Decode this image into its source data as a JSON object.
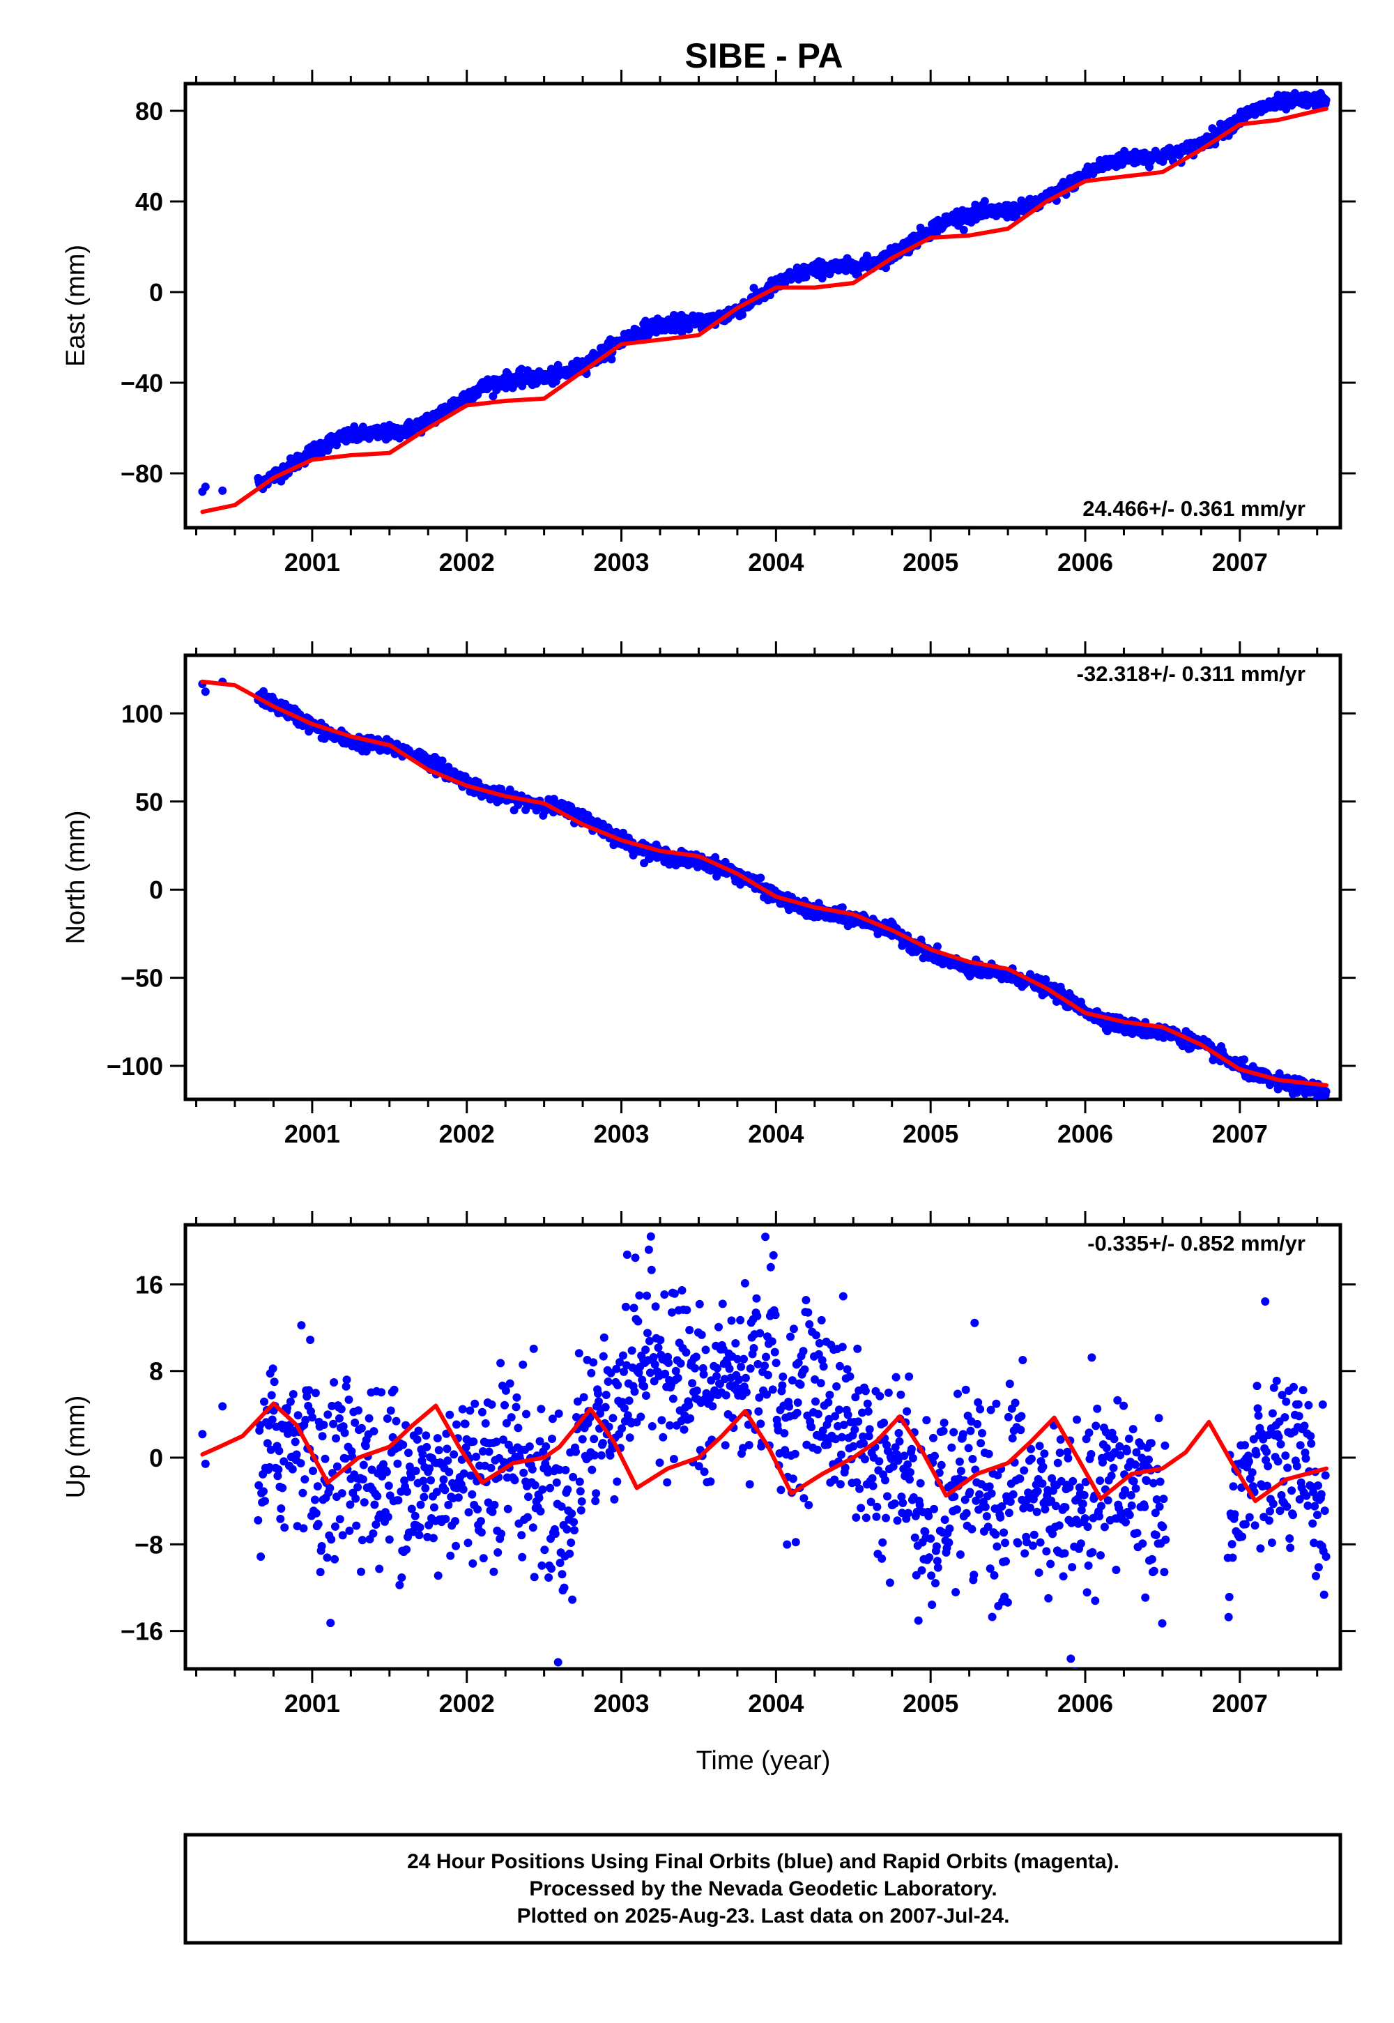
{
  "title": "SIBE - PA",
  "xlabel": "Time (year)",
  "footer": [
    "24 Hour Positions Using Final Orbits (blue) and Rapid Orbits (magenta).",
    "Processed by the Nevada Geodetic Laboratory.",
    "Plotted on 2025-Aug-23. Last data on 2007-Jul-24."
  ],
  "colors": {
    "data": "#0000ff",
    "model": "#ff0000",
    "frame": "#000000"
  },
  "chart_data": [
    {
      "type": "scatter",
      "ylabel": "East (mm)",
      "rate_label": "24.466+/- 0.361 mm/yr",
      "xlim": [
        2000.18,
        2007.65
      ],
      "ylim": [
        -104,
        92
      ],
      "xticks": [
        2001,
        2002,
        2003,
        2004,
        2005,
        2006,
        2007
      ],
      "xtick_labels": [
        "2001",
        "2002",
        "2003",
        "2004",
        "2005",
        "2006",
        "2007"
      ],
      "yticks": [
        -80,
        -40,
        0,
        40,
        80
      ],
      "ytick_labels": [
        "−80",
        "−40",
        "0",
        "40",
        "80"
      ],
      "series": [
        {
          "role": "daily positions (final orbits)",
          "x_range": [
            2000.29,
            2007.56
          ],
          "gap_after": [
            2000.42,
            2000.65
          ],
          "trend": {
            "ref_x": 2004.0,
            "ref_y": 1.0,
            "rate": 24.466
          },
          "annual": {
            "amp": 3.4,
            "phase": 0.1
          },
          "noise_sd": 1.6
        },
        {
          "role": "model fit",
          "x": [
            2000.29,
            2000.5,
            2000.75,
            2001.0,
            2001.25,
            2001.5,
            2001.75,
            2002.0,
            2002.25,
            2002.5,
            2002.75,
            2003.0,
            2003.25,
            2003.5,
            2003.75,
            2004.0,
            2004.25,
            2004.5,
            2004.75,
            2005.0,
            2005.25,
            2005.5,
            2005.75,
            2006.0,
            2006.25,
            2006.5,
            2006.75,
            2007.0,
            2007.25,
            2007.56
          ],
          "y": [
            -97,
            -94,
            -82,
            -74,
            -72,
            -71,
            -60,
            -50,
            -48,
            -47,
            -35,
            -23,
            -21,
            -19,
            -7,
            2,
            2,
            4,
            15,
            24,
            25,
            28,
            40,
            49,
            51,
            53,
            63,
            74,
            76,
            81
          ]
        }
      ]
    },
    {
      "type": "scatter",
      "ylabel": "North (mm)",
      "rate_label": "-32.318+/- 0.311 mm/yr",
      "xlim": [
        2000.18,
        2007.65
      ],
      "ylim": [
        -119,
        133
      ],
      "xticks": [
        2001,
        2002,
        2003,
        2004,
        2005,
        2006,
        2007
      ],
      "xtick_labels": [
        "2001",
        "2002",
        "2003",
        "2004",
        "2005",
        "2006",
        "2007"
      ],
      "yticks": [
        -100,
        -50,
        0,
        50,
        100
      ],
      "ytick_labels": [
        "−100",
        "−50",
        "0",
        "50",
        "100"
      ],
      "series": [
        {
          "role": "daily positions (final orbits)",
          "x_range": [
            2000.29,
            2007.56
          ],
          "gap_after": [
            2000.42,
            2000.65
          ],
          "trend": {
            "ref_x": 2004.0,
            "ref_y": -2.0,
            "rate": -32.318
          },
          "annual": {
            "amp": 3.0,
            "phase": 0.6
          },
          "noise_sd": 2.0
        },
        {
          "role": "model fit",
          "x": [
            2000.29,
            2000.5,
            2000.75,
            2001.0,
            2001.25,
            2001.5,
            2001.75,
            2002.0,
            2002.25,
            2002.5,
            2002.75,
            2003.0,
            2003.25,
            2003.5,
            2003.75,
            2004.0,
            2004.25,
            2004.5,
            2004.75,
            2005.0,
            2005.25,
            2005.5,
            2005.75,
            2006.0,
            2006.25,
            2006.5,
            2006.75,
            2007.0,
            2007.25,
            2007.56
          ],
          "y": [
            118,
            116,
            104,
            94,
            87,
            82,
            68,
            59,
            53,
            49,
            37,
            28,
            22,
            19,
            9,
            -4,
            -10,
            -14,
            -23,
            -34,
            -41,
            -45,
            -56,
            -70,
            -75,
            -78,
            -88,
            -102,
            -108,
            -111
          ]
        }
      ]
    },
    {
      "type": "scatter",
      "ylabel": "Up (mm)",
      "rate_label": "-0.335+/- 0.852 mm/yr",
      "xlim": [
        2000.18,
        2007.65
      ],
      "ylim": [
        -19.5,
        21.5
      ],
      "xticks": [
        2001,
        2002,
        2003,
        2004,
        2005,
        2006,
        2007
      ],
      "xtick_labels": [
        "2001",
        "2002",
        "2003",
        "2004",
        "2005",
        "2006",
        "2007"
      ],
      "yticks": [
        -16,
        -8,
        0,
        8,
        16
      ],
      "ytick_labels": [
        "−16",
        "−8",
        "0",
        "8",
        "16"
      ],
      "series": [
        {
          "role": "daily positions (final orbits)",
          "x_range": [
            2000.29,
            2007.56
          ],
          "gap_after": [
            2000.42,
            2000.65
          ],
          "gaps": [
            [
              2006.52,
              2006.92
            ]
          ],
          "trend": {
            "ref_x": 2004.0,
            "ref_y": 0.0,
            "rate": -0.335
          },
          "annual": {
            "amp": 4.0,
            "phase": 0.0
          },
          "noise_sd": 4.2,
          "offsets": [
            [
              2000.29,
              2000.7,
              -1
            ],
            [
              2000.7,
              2001.0,
              4
            ],
            [
              2001.0,
              2001.5,
              -5
            ],
            [
              2001.5,
              2002.0,
              0
            ],
            [
              2002.0,
              2002.5,
              -4
            ],
            [
              2002.5,
              2002.7,
              -3
            ],
            [
              2002.7,
              2003.2,
              6
            ],
            [
              2003.2,
              2003.6,
              5
            ],
            [
              2003.6,
              2004.0,
              11
            ],
            [
              2004.0,
              2004.5,
              2
            ],
            [
              2004.5,
              2004.9,
              3
            ],
            [
              2004.9,
              2005.5,
              -6
            ],
            [
              2005.5,
              2005.9,
              0
            ],
            [
              2005.9,
              2006.52,
              -5
            ],
            [
              2006.92,
              2007.56,
              -3
            ]
          ]
        },
        {
          "role": "model fit",
          "x": [
            2000.29,
            2000.4,
            2000.55,
            2000.75,
            2000.9,
            2001.1,
            2001.3,
            2001.5,
            2001.65,
            2001.8,
            2001.95,
            2002.1,
            2002.3,
            2002.5,
            2002.6,
            2002.8,
            2002.95,
            2003.1,
            2003.3,
            2003.5,
            2003.65,
            2003.8,
            2003.95,
            2004.1,
            2004.3,
            2004.5,
            2004.65,
            2004.8,
            2004.95,
            2005.1,
            2005.3,
            2005.5,
            2005.65,
            2005.8,
            2005.95,
            2006.1,
            2006.3,
            2006.5,
            2006.65,
            2006.8,
            2006.95,
            2007.1,
            2007.3,
            2007.56
          ],
          "y": [
            0.3,
            1.0,
            2.0,
            5.0,
            3.0,
            -2.3,
            0.0,
            1.0,
            3.0,
            4.8,
            1.0,
            -2.3,
            -0.5,
            0.0,
            1.0,
            4.5,
            1.5,
            -2.8,
            -1.0,
            0.0,
            2.0,
            4.3,
            1.0,
            -3.3,
            -1.5,
            0.0,
            1.5,
            3.8,
            0.5,
            -3.5,
            -1.5,
            -0.5,
            1.5,
            3.7,
            0.0,
            -3.8,
            -1.5,
            -1.0,
            0.5,
            3.3,
            -0.5,
            -4.0,
            -2.0,
            -1.0
          ]
        }
      ]
    }
  ]
}
